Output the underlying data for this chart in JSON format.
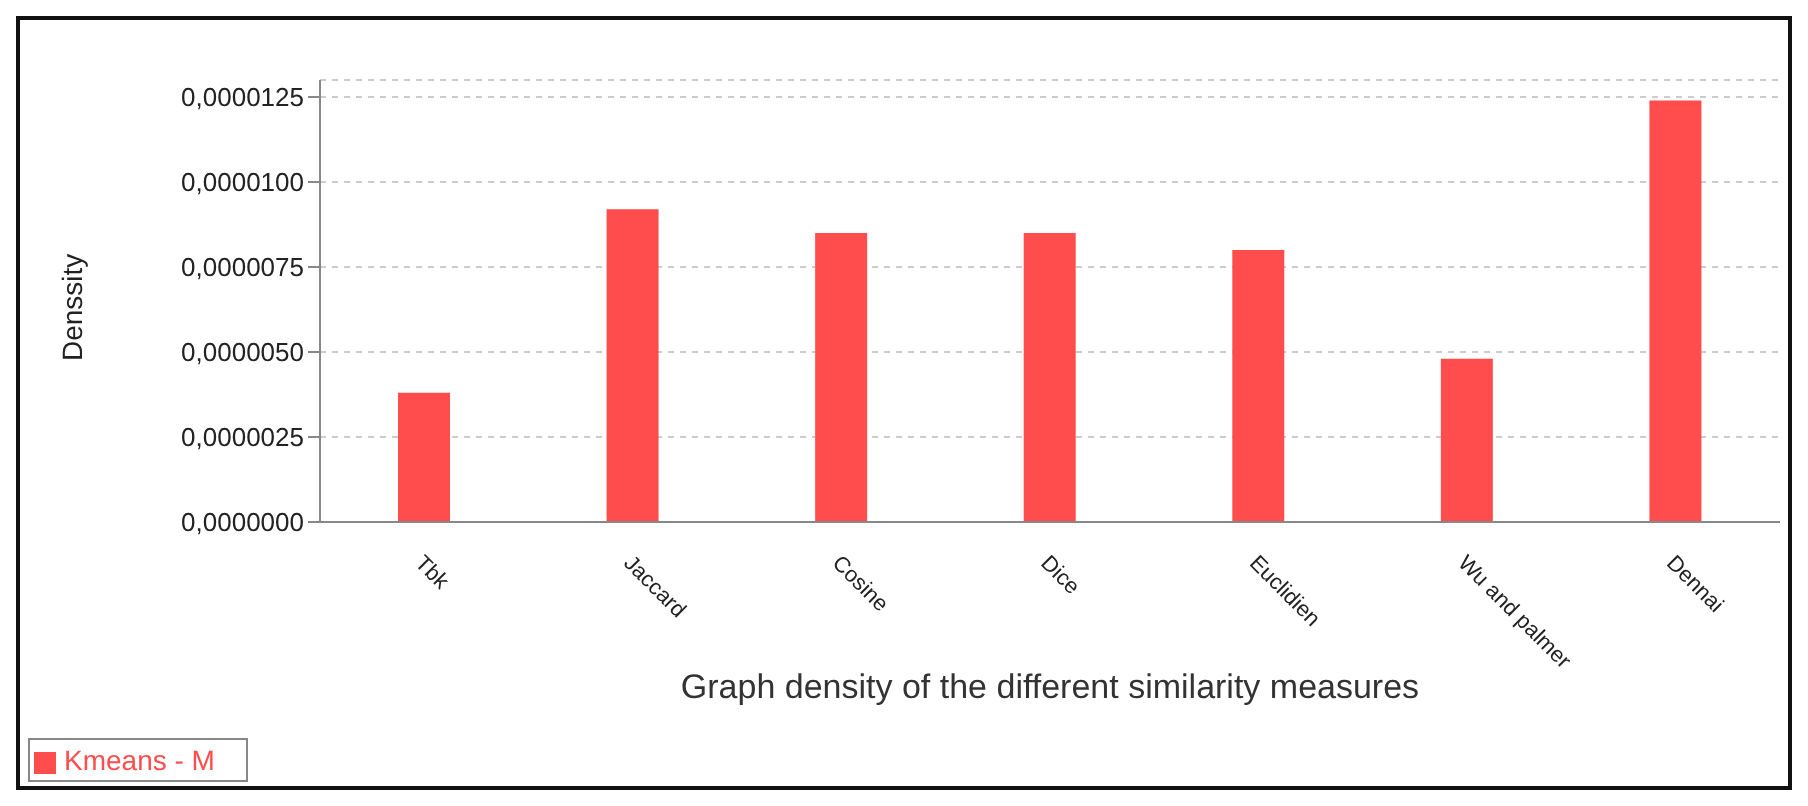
{
  "chart_data": {
    "type": "bar",
    "xlabel": "Graph density of the different similarity measures",
    "ylabel": "Denssity",
    "categories": [
      "Tbk",
      "Jaccard",
      "Cosine",
      "Dice",
      "Euclidien",
      "Wu and palmer",
      "Dennai"
    ],
    "series": [
      {
        "name": "Kmeans - M",
        "color": "#ff4d4d",
        "values": [
          3.8e-06,
          9.2e-06,
          8.5e-06,
          8.5e-06,
          8e-06,
          4.8e-06,
          1.24e-05
        ]
      }
    ],
    "ylim": [
      0,
      1.3e-05
    ],
    "yticks": [
      {
        "value": 0,
        "label": "0,0000000"
      },
      {
        "value": 2.5e-06,
        "label": "0,0000025"
      },
      {
        "value": 5e-06,
        "label": "0,0000050"
      },
      {
        "value": 7.5e-06,
        "label": "0,0000075"
      },
      {
        "value": 1e-05,
        "label": "0,0000100"
      },
      {
        "value": 1.25e-05,
        "label": "0,0000125"
      }
    ],
    "grid": "y",
    "legend": "bottom left"
  }
}
